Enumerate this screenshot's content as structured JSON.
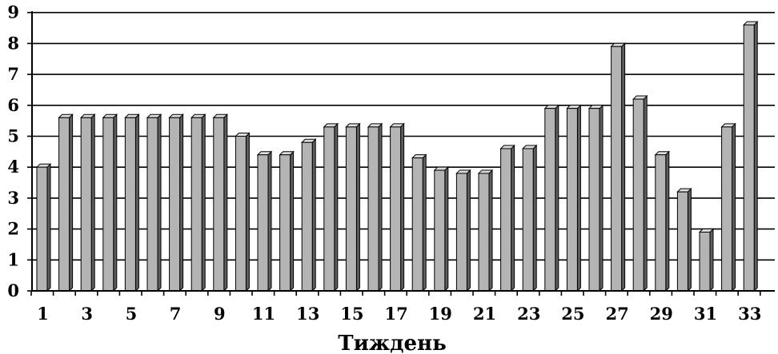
{
  "chart_data": {
    "type": "bar",
    "title": "",
    "xlabel": "Тиждень",
    "ylabel": "",
    "categories": [
      "1",
      "2",
      "3",
      "4",
      "5",
      "6",
      "7",
      "8",
      "9",
      "10",
      "11",
      "12",
      "13",
      "14",
      "15",
      "16",
      "17",
      "18",
      "19",
      "20",
      "21",
      "22",
      "23",
      "24",
      "25",
      "26",
      "27",
      "28",
      "29",
      "30",
      "31",
      "32",
      "33"
    ],
    "x_tick_labels": [
      "1",
      "3",
      "5",
      "7",
      "9",
      "11",
      "13",
      "15",
      "17",
      "19",
      "21",
      "23",
      "25",
      "27",
      "29",
      "31",
      "33"
    ],
    "y_tick_labels": [
      "0",
      "1",
      "2",
      "3",
      "4",
      "5",
      "6",
      "7",
      "8",
      "9"
    ],
    "values": [
      4.0,
      5.6,
      5.6,
      5.6,
      5.6,
      5.6,
      5.6,
      5.6,
      5.6,
      5.0,
      4.4,
      4.4,
      4.8,
      5.3,
      5.3,
      5.3,
      5.3,
      4.3,
      3.9,
      3.8,
      3.8,
      4.6,
      4.6,
      5.9,
      5.9,
      5.9,
      7.9,
      6.2,
      4.4,
      3.2,
      1.9,
      5.3,
      8.6
    ],
    "ylim": [
      0,
      9
    ],
    "grid": true,
    "legend": "none",
    "colors": {
      "bar_front": "#b4b4b4",
      "bar_side": "#5e5e5e",
      "bar_top": "#dcdcdc",
      "gridline": "#000000",
      "axis": "#000000"
    }
  }
}
